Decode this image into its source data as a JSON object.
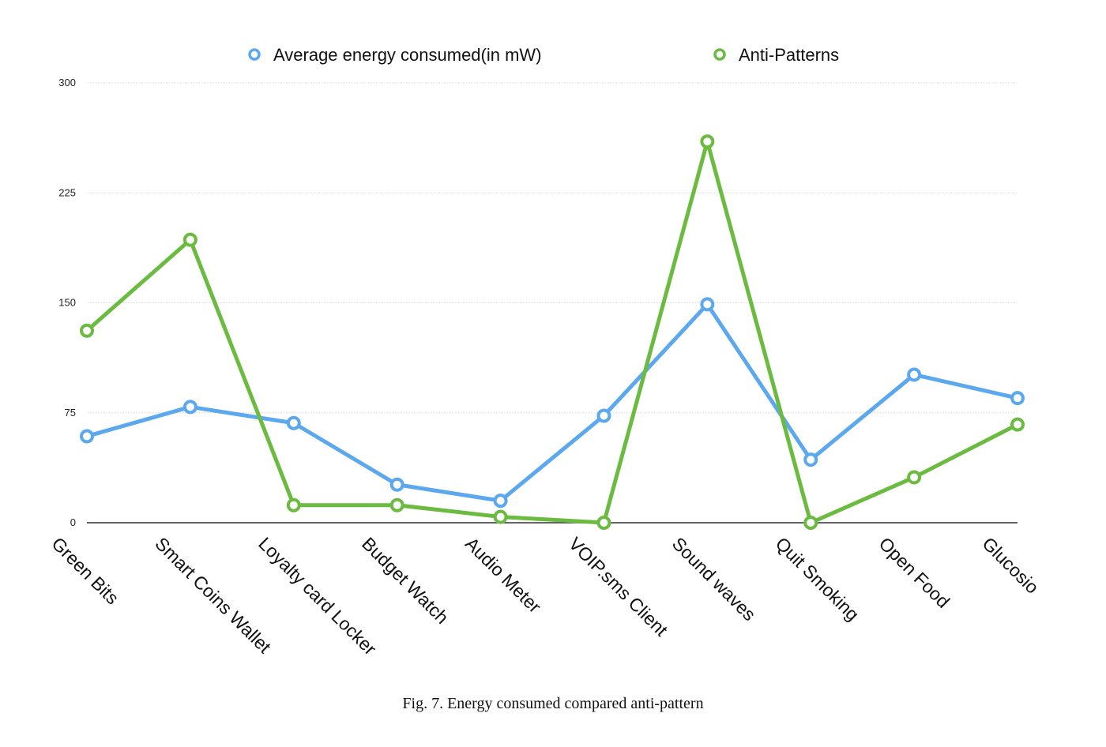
{
  "chart_data": {
    "type": "line",
    "categories": [
      "Green Bits",
      "Smart Coins Wallet",
      "Loyalty card Locker",
      "Budget Watch",
      "Audio Meter",
      "VOIP.sms Client",
      "Sound waves",
      "Quit Smoking",
      "Open Food",
      "Glucosio"
    ],
    "series": [
      {
        "name": "Average energy consumed(in mW)",
        "color": "#5ba8ee",
        "values": [
          59,
          79,
          68,
          26,
          15,
          73,
          149,
          43,
          101,
          85
        ]
      },
      {
        "name": "Anti-Patterns",
        "color": "#6bbb40",
        "values": [
          131,
          193,
          12,
          12,
          4,
          0,
          260,
          0,
          31,
          67
        ]
      }
    ],
    "yticks": [
      0,
      75,
      150,
      225,
      300
    ],
    "ylim": [
      0,
      300
    ],
    "grid": true,
    "legend_position": "top"
  },
  "caption": "Fig. 7.  Energy consumed compared anti-pattern"
}
